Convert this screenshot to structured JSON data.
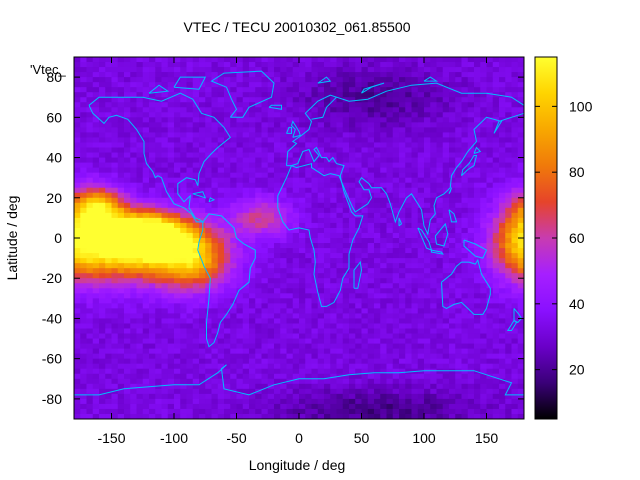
{
  "chart_data": {
    "type": "heatmap",
    "title": "VTEC / TECU 20010302_061.85500",
    "xlabel": "Longitude / deg",
    "ylabel": "Latitude / deg",
    "key_label": "'Vtec_",
    "xlim": [
      -180,
      180
    ],
    "ylim": [
      -90,
      90
    ],
    "x_ticks": [
      -150,
      -100,
      -50,
      0,
      50,
      100,
      150
    ],
    "y_ticks": [
      -80,
      -60,
      -40,
      -20,
      0,
      20,
      40,
      60,
      80
    ],
    "x_tick_labels": [
      "-150",
      "-100",
      "-50",
      "0",
      "50",
      "100",
      "150"
    ],
    "y_tick_labels": [
      "-80",
      "-60",
      "-40",
      "-20",
      "0",
      "20",
      "40",
      "60",
      "80"
    ],
    "colorbar": {
      "range": [
        5,
        115
      ],
      "ticks": [
        20,
        40,
        60,
        80,
        100
      ],
      "tick_labels": [
        "20",
        "40",
        "60",
        "80",
        "100"
      ],
      "palette": [
        "#000000",
        "#3a0078",
        "#6a00c8",
        "#8a10ff",
        "#a61fff",
        "#c83cb0",
        "#e6442a",
        "#f07a0a",
        "#f8a800",
        "#ffd400",
        "#ffff30"
      ]
    },
    "grid_resolution_deg": [
      5,
      2.5
    ],
    "tec_regions": [
      {
        "center_lon": -140,
        "center_lat": -5,
        "lon_width": 45,
        "lat_width": 16,
        "peak_tecu": 105
      },
      {
        "center_lon": -120,
        "center_lat": 2,
        "lon_width": 30,
        "lat_width": 10,
        "peak_tecu": 112
      },
      {
        "center_lon": -85,
        "center_lat": -10,
        "lon_width": 30,
        "lat_width": 15,
        "peak_tecu": 95
      },
      {
        "center_lon": -30,
        "center_lat": 10,
        "lon_width": 25,
        "lat_width": 10,
        "peak_tecu": 62
      },
      {
        "center_lon": -160,
        "center_lat": 15,
        "lon_width": 20,
        "lat_width": 10,
        "peak_tecu": 90
      },
      {
        "center_lon": 180,
        "center_lat": 0,
        "lon_width": 25,
        "lat_width": 20,
        "peak_tecu": 80
      }
    ],
    "background_tecu": 32,
    "low_tec_regions": [
      {
        "center_lon": 60,
        "center_lat": 70,
        "lon_width": 60,
        "lat_width": 15,
        "depth_tecu": 20
      },
      {
        "center_lon": 60,
        "center_lat": -85,
        "lon_width": 80,
        "lat_width": 10,
        "depth_tecu": 18
      }
    ],
    "coastline_color": "#00bfff"
  }
}
